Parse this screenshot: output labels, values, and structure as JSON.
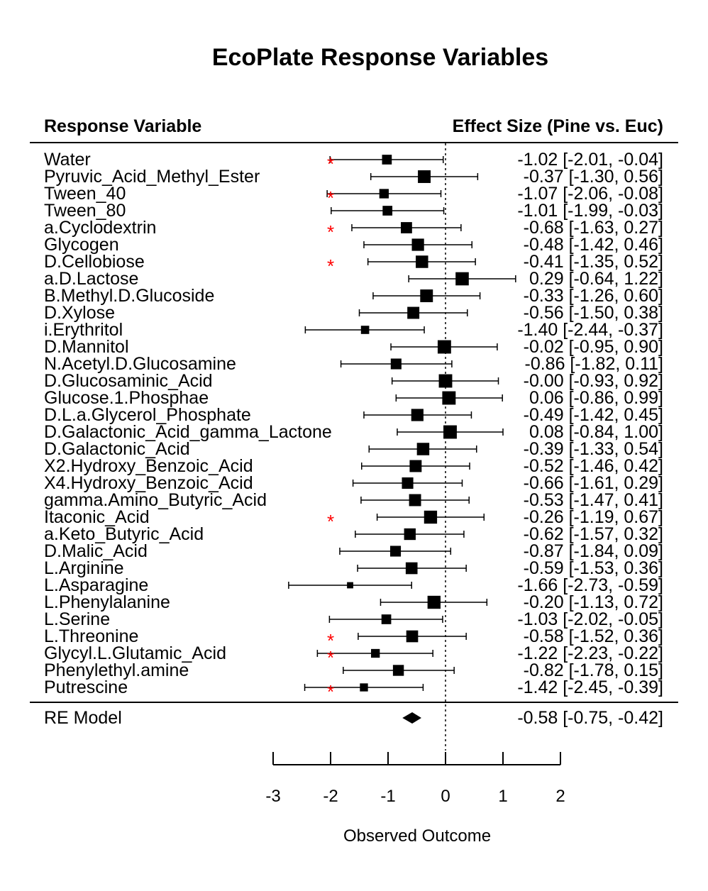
{
  "chart_data": {
    "type": "forest",
    "title": "EcoPlate Response Variables",
    "left_header": "Response Variable",
    "right_header": "Effect Size (Pine vs. Euc)",
    "xlabel": "Observed Outcome",
    "xlim": [
      -3,
      2
    ],
    "x_ticks": [
      "-3",
      "-2",
      "-1",
      "0",
      "1",
      "2"
    ],
    "reference_line": 0,
    "significance_marker": "*",
    "significance_color": "#ff0000",
    "rows": [
      {
        "label": "Water",
        "est": -1.02,
        "lo": -2.01,
        "hi": -0.04,
        "ci_text": "-1.02 [-2.01, -0.04]",
        "weight": 0.55,
        "star": true
      },
      {
        "label": "Pyruvic_Acid_Methyl_Ester",
        "est": -0.37,
        "lo": -1.3,
        "hi": 0.56,
        "ci_text": "-0.37 [-1.30,  0.56]",
        "weight": 0.85,
        "star": false
      },
      {
        "label": "Tween_40",
        "est": -1.07,
        "lo": -2.06,
        "hi": -0.08,
        "ci_text": "-1.07 [-2.06, -0.08]",
        "weight": 0.52,
        "star": true
      },
      {
        "label": "Tween_80",
        "est": -1.01,
        "lo": -1.99,
        "hi": -0.03,
        "ci_text": "-1.01 [-1.99, -0.03]",
        "weight": 0.55,
        "star": false
      },
      {
        "label": "a.Cyclodextrin",
        "est": -0.68,
        "lo": -1.63,
        "hi": 0.27,
        "ci_text": "-0.68 [-1.63,  0.27]",
        "weight": 0.7,
        "star": true
      },
      {
        "label": "Glycogen",
        "est": -0.48,
        "lo": -1.42,
        "hi": 0.46,
        "ci_text": "-0.48 [-1.42,  0.46]",
        "weight": 0.8,
        "star": false
      },
      {
        "label": "D.Cellobiose",
        "est": -0.41,
        "lo": -1.35,
        "hi": 0.52,
        "ci_text": "-0.41 [-1.35,  0.52]",
        "weight": 0.82,
        "star": true
      },
      {
        "label": "a.D.Lactose",
        "est": 0.29,
        "lo": -0.64,
        "hi": 1.22,
        "ci_text": "0.29 [-0.64,  1.22]",
        "weight": 0.9,
        "star": false
      },
      {
        "label": "B.Methyl.D.Glucoside",
        "est": -0.33,
        "lo": -1.26,
        "hi": 0.6,
        "ci_text": "-0.33 [-1.26,  0.60]",
        "weight": 0.85,
        "star": false
      },
      {
        "label": "D.Xylose",
        "est": -0.56,
        "lo": -1.5,
        "hi": 0.38,
        "ci_text": "-0.56 [-1.50,  0.38]",
        "weight": 0.78,
        "star": false
      },
      {
        "label": "i.Erythritol",
        "est": -1.4,
        "lo": -2.44,
        "hi": -0.37,
        "ci_text": "-1.40 [-2.44, -0.37]",
        "weight": 0.4,
        "star": false
      },
      {
        "label": "D.Mannitol",
        "est": -0.02,
        "lo": -0.95,
        "hi": 0.9,
        "ci_text": "-0.02 [-0.95,  0.90]",
        "weight": 0.92,
        "star": false
      },
      {
        "label": "N.Acetyl.D.Glucosamine",
        "est": -0.86,
        "lo": -1.82,
        "hi": 0.11,
        "ci_text": "-0.86 [-1.82,  0.11]",
        "weight": 0.65,
        "star": false
      },
      {
        "label": "D.Glucosaminic_Acid",
        "est": -0.0,
        "lo": -0.93,
        "hi": 0.92,
        "ci_text": "-0.00 [-0.93,  0.92]",
        "weight": 0.92,
        "star": false
      },
      {
        "label": "Glucose.1.Phosphae",
        "est": 0.06,
        "lo": -0.86,
        "hi": 0.99,
        "ci_text": "0.06 [-0.86,  0.99]",
        "weight": 0.92,
        "star": false
      },
      {
        "label": "D.L.a.Glycerol_Phosphate",
        "est": -0.49,
        "lo": -1.42,
        "hi": 0.45,
        "ci_text": "-0.49 [-1.42,  0.45]",
        "weight": 0.8,
        "star": false
      },
      {
        "label": "D.Galactonic_Acid_gamma_Lactone",
        "est": 0.08,
        "lo": -0.84,
        "hi": 1.0,
        "ci_text": "0.08 [-0.84,  1.00]",
        "weight": 0.92,
        "star": false
      },
      {
        "label": "D.Galactonic_Acid",
        "est": -0.39,
        "lo": -1.33,
        "hi": 0.54,
        "ci_text": "-0.39 [-1.33,  0.54]",
        "weight": 0.82,
        "star": false
      },
      {
        "label": "X2.Hydroxy_Benzoic_Acid",
        "est": -0.52,
        "lo": -1.46,
        "hi": 0.42,
        "ci_text": "-0.52 [-1.46,  0.42]",
        "weight": 0.78,
        "star": false
      },
      {
        "label": "X4.Hydroxy_Benzoic_Acid",
        "est": -0.66,
        "lo": -1.61,
        "hi": 0.29,
        "ci_text": "-0.66 [-1.61,  0.29]",
        "weight": 0.72,
        "star": false
      },
      {
        "label": "gamma.Amino_Butyric_Acid",
        "est": -0.53,
        "lo": -1.47,
        "hi": 0.41,
        "ci_text": "-0.53 [-1.47,  0.41]",
        "weight": 0.78,
        "star": false
      },
      {
        "label": "Itaconic_Acid",
        "est": -0.26,
        "lo": -1.19,
        "hi": 0.67,
        "ci_text": "-0.26 [-1.19,  0.67]",
        "weight": 0.88,
        "star": true
      },
      {
        "label": "a.Keto_Butyric_Acid",
        "est": -0.62,
        "lo": -1.57,
        "hi": 0.32,
        "ci_text": "-0.62 [-1.57,  0.32]",
        "weight": 0.74,
        "star": false
      },
      {
        "label": "D.Malic_Acid",
        "est": -0.87,
        "lo": -1.84,
        "hi": 0.09,
        "ci_text": "-0.87 [-1.84,  0.09]",
        "weight": 0.65,
        "star": false
      },
      {
        "label": "L.Arginine",
        "est": -0.59,
        "lo": -1.53,
        "hi": 0.36,
        "ci_text": "-0.59 [-1.53,  0.36]",
        "weight": 0.76,
        "star": false
      },
      {
        "label": "L.Asparagine",
        "est": -1.66,
        "lo": -2.73,
        "hi": -0.59,
        "ci_text": "-1.66 [-2.73, -0.59]",
        "weight": 0.2,
        "star": false
      },
      {
        "label": "L.Phenylalanine",
        "est": -0.2,
        "lo": -1.13,
        "hi": 0.72,
        "ci_text": "-0.20 [-1.13,  0.72]",
        "weight": 0.88,
        "star": false
      },
      {
        "label": "L.Serine",
        "est": -1.03,
        "lo": -2.02,
        "hi": -0.05,
        "ci_text": "-1.03 [-2.02, -0.05]",
        "weight": 0.55,
        "star": false
      },
      {
        "label": "L.Threonine",
        "est": -0.58,
        "lo": -1.52,
        "hi": 0.36,
        "ci_text": "-0.58 [-1.52,  0.36]",
        "weight": 0.76,
        "star": true
      },
      {
        "label": "Glycyl.L.Glutamic_Acid",
        "est": -1.22,
        "lo": -2.23,
        "hi": -0.22,
        "ci_text": "-1.22 [-2.23, -0.22]",
        "weight": 0.45,
        "star": true
      },
      {
        "label": "Phenylethyl.amine",
        "est": -0.82,
        "lo": -1.78,
        "hi": 0.15,
        "ci_text": "-0.82 [-1.78,  0.15]",
        "weight": 0.67,
        "star": false
      },
      {
        "label": "Putrescine",
        "est": -1.42,
        "lo": -2.45,
        "hi": -0.39,
        "ci_text": "-1.42 [-2.45, -0.39]",
        "weight": 0.38,
        "star": true
      }
    ],
    "summary": {
      "label": "RE Model",
      "est": -0.58,
      "lo": -0.75,
      "hi": -0.42,
      "ci_text": "-0.58 [-0.75, -0.42]"
    }
  }
}
